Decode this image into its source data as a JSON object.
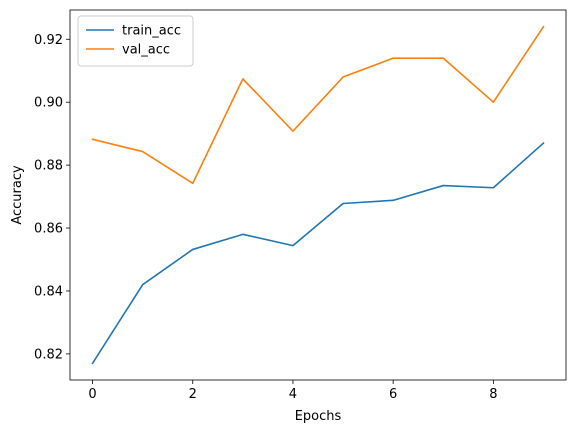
{
  "chart_data": {
    "type": "line",
    "title": "",
    "xlabel": "Epochs",
    "ylabel": "Accuracy",
    "x": [
      0,
      1,
      2,
      3,
      4,
      5,
      6,
      7,
      8,
      9
    ],
    "series": [
      {
        "name": "train_acc",
        "color": "#1f77b4",
        "values": [
          0.817,
          0.842,
          0.8532,
          0.858,
          0.8544,
          0.8678,
          0.8688,
          0.8735,
          0.8728,
          0.887
        ]
      },
      {
        "name": "val_acc",
        "color": "#ff7f0e",
        "values": [
          0.8882,
          0.8843,
          0.8742,
          0.9074,
          0.8908,
          0.908,
          0.914,
          0.914,
          0.9,
          0.924
        ]
      }
    ],
    "xlim": [
      -0.45,
      9.45
    ],
    "ylim": [
      0.8117,
      0.9293
    ],
    "xticks": [
      0,
      2,
      4,
      6,
      8
    ],
    "xtick_labels": [
      "0",
      "2",
      "4",
      "6",
      "8"
    ],
    "yticks": [
      0.82,
      0.84,
      0.86,
      0.88,
      0.9,
      0.92
    ],
    "ytick_labels": [
      "0.82",
      "0.84",
      "0.86",
      "0.88",
      "0.90",
      "0.92"
    ],
    "grid": false,
    "legend_position": "upper-left"
  }
}
